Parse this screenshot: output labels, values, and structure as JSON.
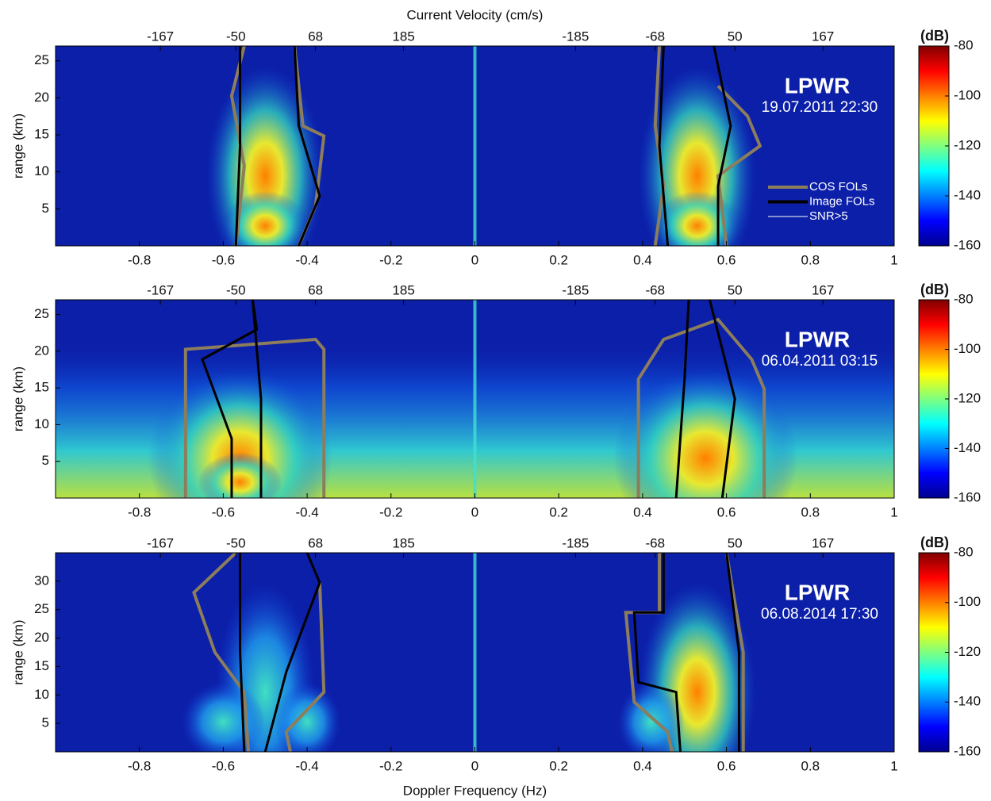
{
  "chart_data": [
    {
      "type": "heatmap",
      "x2label": "Current Velocity (cm/s)",
      "title": "LPWR",
      "subtitle": "19.07.2011 22:30",
      "xlim": [
        -1,
        1
      ],
      "xticks": [
        -0.8,
        -0.6,
        -0.4,
        -0.2,
        0,
        0.2,
        0.4,
        0.6,
        0.8,
        1
      ],
      "x2ticks": [
        {
          "value": -0.75,
          "label": "-167"
        },
        {
          "value": -0.57,
          "label": "-50"
        },
        {
          "value": -0.38,
          "label": "68"
        },
        {
          "value": -0.17,
          "label": "185"
        },
        {
          "value": 0.24,
          "label": "-185"
        },
        {
          "value": 0.43,
          "label": "-68"
        },
        {
          "value": 0.62,
          "label": "50"
        },
        {
          "value": 0.83,
          "label": "167"
        }
      ],
      "ylabel": "range (km)",
      "ylim": [
        0,
        27
      ],
      "yticks": [
        5,
        10,
        15,
        20,
        25
      ],
      "colorbar": {
        "label": "(dB)",
        "lim": [
          -160,
          -80
        ],
        "ticks": [
          -80,
          -100,
          -120,
          -140,
          -160
        ]
      },
      "series": [
        {
          "name": "COS FOLs",
          "color": "#8c7d5c"
        },
        {
          "name": "Image FOLs",
          "color": "#000000"
        },
        {
          "name": "SNR>5",
          "color": "#ffffff"
        }
      ]
    },
    {
      "type": "heatmap",
      "title": "LPWR",
      "subtitle": "06.04.2011 03:15",
      "xlim": [
        -1,
        1
      ],
      "xticks": [
        -0.8,
        -0.6,
        -0.4,
        -0.2,
        0,
        0.2,
        0.4,
        0.6,
        0.8,
        1
      ],
      "x2ticks": [
        {
          "value": -0.75,
          "label": "-167"
        },
        {
          "value": -0.57,
          "label": "-50"
        },
        {
          "value": -0.38,
          "label": "68"
        },
        {
          "value": -0.17,
          "label": "185"
        },
        {
          "value": 0.24,
          "label": "-185"
        },
        {
          "value": 0.43,
          "label": "-68"
        },
        {
          "value": 0.62,
          "label": "50"
        },
        {
          "value": 0.83,
          "label": "167"
        }
      ],
      "ylabel": "range (km)",
      "ylim": [
        0,
        27
      ],
      "yticks": [
        5,
        10,
        15,
        20,
        25
      ],
      "colorbar": {
        "label": "(dB)",
        "lim": [
          -160,
          -80
        ],
        "ticks": [
          -80,
          -100,
          -120,
          -140,
          -160
        ]
      }
    },
    {
      "type": "heatmap",
      "title": "LPWR",
      "subtitle": "06.08.2014 17:30",
      "xlabel": "Doppler Frequency (Hz)",
      "xlim": [
        -1,
        1
      ],
      "xticks": [
        -0.8,
        -0.6,
        -0.4,
        -0.2,
        0,
        0.2,
        0.4,
        0.6,
        0.8,
        1
      ],
      "x2ticks": [
        {
          "value": -0.75,
          "label": "-167"
        },
        {
          "value": -0.57,
          "label": "-50"
        },
        {
          "value": -0.38,
          "label": "68"
        },
        {
          "value": -0.17,
          "label": "185"
        },
        {
          "value": 0.24,
          "label": "-185"
        },
        {
          "value": 0.43,
          "label": "-68"
        },
        {
          "value": 0.62,
          "label": "50"
        },
        {
          "value": 0.83,
          "label": "167"
        }
      ],
      "ylabel": "range (km)",
      "ylim": [
        0,
        35
      ],
      "yticks": [
        5,
        10,
        15,
        20,
        25,
        30
      ],
      "colorbar": {
        "label": "(dB)",
        "lim": [
          -160,
          -80
        ],
        "ticks": [
          -80,
          -100,
          -120,
          -140,
          -160
        ]
      }
    }
  ]
}
